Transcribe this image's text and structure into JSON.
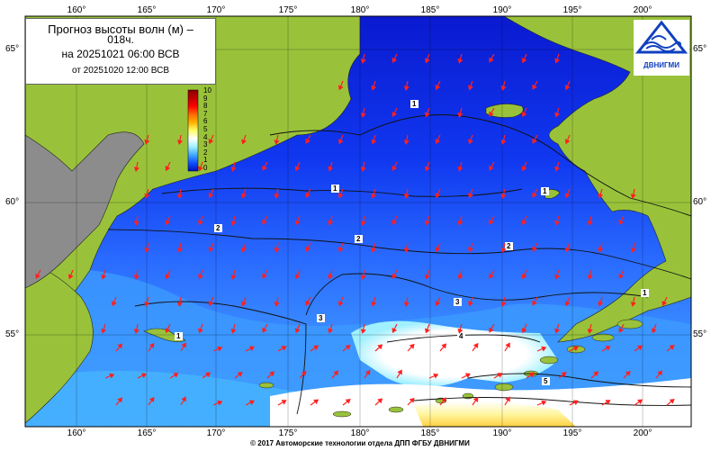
{
  "title": {
    "line1": "Прогноз высоты волн (м) –",
    "line1b": "018ч.",
    "line2": "на 20251021 06:00 ВСВ",
    "line3": "от 20251020 12:00 ВСВ"
  },
  "logo": {
    "text": "ДВНИГМИ",
    "icon": "dvnigmi-wave-logo"
  },
  "footer": "© 2017 Автоморские технологии отдела ДПП ФГБУ ДВНИГМИ",
  "lon_labels_top": [
    "160°",
    "165°",
    "170°",
    "175°",
    "180°",
    "185°",
    "190°",
    "195°",
    "200°"
  ],
  "lon_labels_bottom": [
    "160°",
    "165°",
    "170°",
    "175°",
    "180°",
    "185°",
    "190°",
    "195°",
    "200°"
  ],
  "lat_labels_left": [
    "65°",
    "60°",
    "55°"
  ],
  "lat_labels_right": [
    "65°",
    "60°",
    "55°"
  ],
  "legend": {
    "labels": [
      "10",
      "9",
      "8",
      "7",
      "6",
      "5",
      "4",
      "3",
      "2",
      "1",
      "0"
    ],
    "colors": [
      "#8b0000",
      "#c00000",
      "#ff0000",
      "#ff6a00",
      "#ffb000",
      "#ffff66",
      "#ffffff",
      "#a0f0ff",
      "#40a8ff",
      "#1050ff",
      "#0010c0"
    ]
  },
  "contour_labels": [
    "1",
    "1",
    "1",
    "2",
    "2",
    "2",
    "3",
    "3",
    "4",
    "5",
    "1",
    "1"
  ],
  "colors": {
    "land": "#99c23a",
    "land_grey": "#8c8c8c",
    "sea_deep": "#0a1ed8",
    "sea_mid": "#1a5cff",
    "sea_light": "#3c8cff",
    "arrow": "#ff2020"
  }
}
